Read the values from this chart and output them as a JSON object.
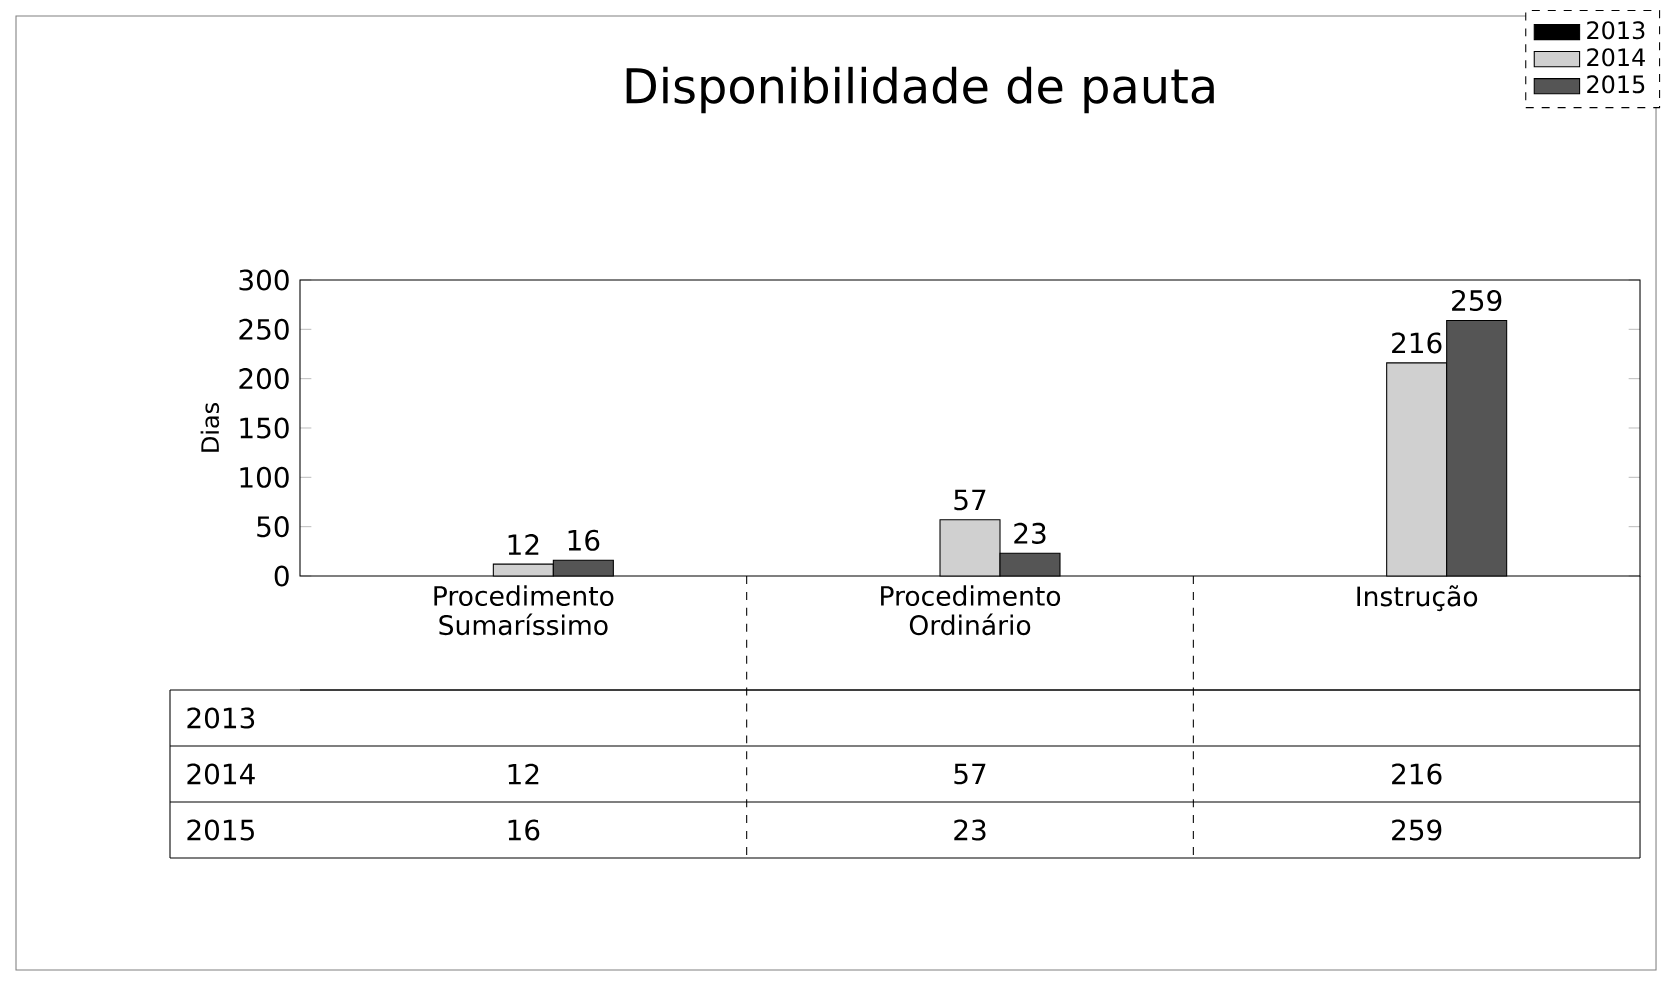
{
  "chart_data": {
    "type": "bar",
    "title": "Disponibilidade de pauta",
    "ylabel": "Dias",
    "categories": [
      "Procedimento Sumaríssimo",
      "Procedimento Ordinário",
      "Instrução"
    ],
    "series": [
      {
        "name": "2013",
        "color": "#000000",
        "values": [
          null,
          null,
          null
        ]
      },
      {
        "name": "2014",
        "color": "#d0d0d0",
        "values": [
          12,
          57,
          216
        ],
        "value_labels": [
          "12",
          "57",
          "216"
        ]
      },
      {
        "name": "2015",
        "color": "#555555",
        "values": [
          16,
          23,
          259
        ],
        "value_labels": [
          "16",
          "23",
          "259"
        ]
      }
    ],
    "ylim": [
      0,
      300
    ],
    "yticks": [
      0,
      50,
      100,
      150,
      200,
      250,
      300
    ],
    "data_labels": true,
    "legend": "top right"
  }
}
